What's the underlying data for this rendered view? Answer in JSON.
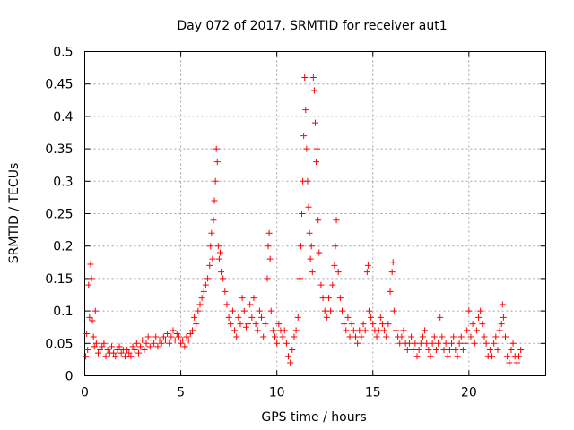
{
  "chart_data": {
    "type": "scatter",
    "title": "Day 072 of 2017, SRMTID for receiver aut1",
    "xlabel": "GPS time / hours",
    "ylabel": "SRMTID / TECUs",
    "xlim": [
      0,
      24
    ],
    "ylim": [
      0,
      0.5
    ],
    "x_ticks": [
      0,
      5,
      10,
      15,
      20
    ],
    "x_tick_labels": [
      "0",
      "5",
      "10",
      "15",
      "20"
    ],
    "y_ticks": [
      0,
      0.05,
      0.1,
      0.15,
      0.2,
      0.25,
      0.3,
      0.35,
      0.4,
      0.45,
      0.5
    ],
    "y_tick_labels": [
      "0",
      "0.05",
      "0.1",
      "0.15",
      "0.2",
      "0.25",
      "0.3",
      "0.35",
      "0.4",
      "0.45",
      "0.5"
    ],
    "grid": true,
    "marker": "plus",
    "color": "#ff0000",
    "series": [
      {
        "name": "SRMTID",
        "points": [
          [
            0.05,
            0.03
          ],
          [
            0.1,
            0.065
          ],
          [
            0.15,
            0.04
          ],
          [
            0.2,
            0.14
          ],
          [
            0.25,
            0.09
          ],
          [
            0.3,
            0.172
          ],
          [
            0.35,
            0.15
          ],
          [
            0.4,
            0.085
          ],
          [
            0.45,
            0.06
          ],
          [
            0.5,
            0.045
          ],
          [
            0.55,
            0.1
          ],
          [
            0.6,
            0.05
          ],
          [
            0.7,
            0.035
          ],
          [
            0.8,
            0.04
          ],
          [
            0.9,
            0.045
          ],
          [
            1.0,
            0.05
          ],
          [
            1.1,
            0.03
          ],
          [
            1.2,
            0.04
          ],
          [
            1.3,
            0.035
          ],
          [
            1.4,
            0.045
          ],
          [
            1.5,
            0.035
          ],
          [
            1.6,
            0.03
          ],
          [
            1.7,
            0.04
          ],
          [
            1.8,
            0.045
          ],
          [
            1.9,
            0.035
          ],
          [
            2.0,
            0.04
          ],
          [
            2.1,
            0.03
          ],
          [
            2.2,
            0.04
          ],
          [
            2.3,
            0.035
          ],
          [
            2.4,
            0.03
          ],
          [
            2.5,
            0.045
          ],
          [
            2.6,
            0.04
          ],
          [
            2.7,
            0.05
          ],
          [
            2.8,
            0.035
          ],
          [
            2.9,
            0.045
          ],
          [
            3.0,
            0.055
          ],
          [
            3.1,
            0.04
          ],
          [
            3.2,
            0.05
          ],
          [
            3.3,
            0.06
          ],
          [
            3.4,
            0.045
          ],
          [
            3.5,
            0.055
          ],
          [
            3.6,
            0.05
          ],
          [
            3.7,
            0.06
          ],
          [
            3.8,
            0.045
          ],
          [
            3.9,
            0.055
          ],
          [
            4.0,
            0.05
          ],
          [
            4.1,
            0.06
          ],
          [
            4.2,
            0.055
          ],
          [
            4.3,
            0.065
          ],
          [
            4.4,
            0.05
          ],
          [
            4.5,
            0.06
          ],
          [
            4.6,
            0.07
          ],
          [
            4.7,
            0.055
          ],
          [
            4.8,
            0.065
          ],
          [
            4.9,
            0.06
          ],
          [
            5.0,
            0.05
          ],
          [
            5.1,
            0.055
          ],
          [
            5.2,
            0.045
          ],
          [
            5.3,
            0.06
          ],
          [
            5.4,
            0.055
          ],
          [
            5.5,
            0.065
          ],
          [
            5.6,
            0.07
          ],
          [
            5.7,
            0.09
          ],
          [
            5.8,
            0.08
          ],
          [
            5.9,
            0.1
          ],
          [
            6.0,
            0.11
          ],
          [
            6.1,
            0.12
          ],
          [
            6.2,
            0.13
          ],
          [
            6.3,
            0.14
          ],
          [
            6.4,
            0.15
          ],
          [
            6.5,
            0.17
          ],
          [
            6.55,
            0.2
          ],
          [
            6.6,
            0.22
          ],
          [
            6.65,
            0.18
          ],
          [
            6.7,
            0.24
          ],
          [
            6.75,
            0.27
          ],
          [
            6.8,
            0.3
          ],
          [
            6.85,
            0.35
          ],
          [
            6.9,
            0.33
          ],
          [
            6.95,
            0.2
          ],
          [
            7.0,
            0.18
          ],
          [
            7.05,
            0.19
          ],
          [
            7.1,
            0.16
          ],
          [
            7.2,
            0.15
          ],
          [
            7.3,
            0.13
          ],
          [
            7.4,
            0.11
          ],
          [
            7.5,
            0.09
          ],
          [
            7.6,
            0.08
          ],
          [
            7.7,
            0.1
          ],
          [
            7.8,
            0.07
          ],
          [
            7.9,
            0.06
          ],
          [
            8.0,
            0.09
          ],
          [
            8.1,
            0.08
          ],
          [
            8.2,
            0.12
          ],
          [
            8.3,
            0.1
          ],
          [
            8.4,
            0.075
          ],
          [
            8.5,
            0.08
          ],
          [
            8.6,
            0.11
          ],
          [
            8.7,
            0.09
          ],
          [
            8.8,
            0.12
          ],
          [
            8.9,
            0.08
          ],
          [
            9.0,
            0.07
          ],
          [
            9.1,
            0.1
          ],
          [
            9.2,
            0.09
          ],
          [
            9.3,
            0.06
          ],
          [
            9.4,
            0.08
          ],
          [
            9.5,
            0.15
          ],
          [
            9.55,
            0.2
          ],
          [
            9.6,
            0.22
          ],
          [
            9.65,
            0.18
          ],
          [
            9.7,
            0.1
          ],
          [
            9.8,
            0.07
          ],
          [
            9.9,
            0.06
          ],
          [
            10.0,
            0.05
          ],
          [
            10.1,
            0.08
          ],
          [
            10.2,
            0.07
          ],
          [
            10.3,
            0.06
          ],
          [
            10.4,
            0.07
          ],
          [
            10.5,
            0.05
          ],
          [
            10.6,
            0.03
          ],
          [
            10.7,
            0.02
          ],
          [
            10.8,
            0.04
          ],
          [
            10.9,
            0.06
          ],
          [
            11.0,
            0.07
          ],
          [
            11.1,
            0.09
          ],
          [
            11.2,
            0.15
          ],
          [
            11.25,
            0.2
          ],
          [
            11.3,
            0.25
          ],
          [
            11.35,
            0.3
          ],
          [
            11.4,
            0.37
          ],
          [
            11.45,
            0.46
          ],
          [
            11.5,
            0.41
          ],
          [
            11.55,
            0.35
          ],
          [
            11.6,
            0.3
          ],
          [
            11.65,
            0.26
          ],
          [
            11.7,
            0.22
          ],
          [
            11.75,
            0.18
          ],
          [
            11.8,
            0.2
          ],
          [
            11.85,
            0.16
          ],
          [
            11.9,
            0.46
          ],
          [
            11.95,
            0.44
          ],
          [
            12.0,
            0.39
          ],
          [
            12.05,
            0.33
          ],
          [
            12.1,
            0.35
          ],
          [
            12.15,
            0.24
          ],
          [
            12.2,
            0.19
          ],
          [
            12.3,
            0.14
          ],
          [
            12.4,
            0.12
          ],
          [
            12.5,
            0.1
          ],
          [
            12.6,
            0.09
          ],
          [
            12.7,
            0.12
          ],
          [
            12.8,
            0.1
          ],
          [
            12.9,
            0.14
          ],
          [
            13.0,
            0.17
          ],
          [
            13.05,
            0.2
          ],
          [
            13.1,
            0.24
          ],
          [
            13.2,
            0.16
          ],
          [
            13.3,
            0.12
          ],
          [
            13.4,
            0.1
          ],
          [
            13.5,
            0.08
          ],
          [
            13.6,
            0.07
          ],
          [
            13.7,
            0.09
          ],
          [
            13.8,
            0.06
          ],
          [
            13.9,
            0.08
          ],
          [
            14.0,
            0.07
          ],
          [
            14.1,
            0.06
          ],
          [
            14.2,
            0.05
          ],
          [
            14.3,
            0.07
          ],
          [
            14.4,
            0.06
          ],
          [
            14.5,
            0.08
          ],
          [
            14.6,
            0.07
          ],
          [
            14.7,
            0.16
          ],
          [
            14.75,
            0.17
          ],
          [
            14.8,
            0.1
          ],
          [
            14.9,
            0.09
          ],
          [
            15.0,
            0.08
          ],
          [
            15.1,
            0.07
          ],
          [
            15.2,
            0.06
          ],
          [
            15.3,
            0.07
          ],
          [
            15.4,
            0.09
          ],
          [
            15.5,
            0.08
          ],
          [
            15.6,
            0.07
          ],
          [
            15.7,
            0.06
          ],
          [
            15.8,
            0.08
          ],
          [
            15.9,
            0.13
          ],
          [
            16.0,
            0.16
          ],
          [
            16.05,
            0.175
          ],
          [
            16.1,
            0.1
          ],
          [
            16.2,
            0.07
          ],
          [
            16.3,
            0.06
          ],
          [
            16.4,
            0.05
          ],
          [
            16.5,
            0.06
          ],
          [
            16.6,
            0.07
          ],
          [
            16.7,
            0.05
          ],
          [
            16.8,
            0.04
          ],
          [
            16.9,
            0.05
          ],
          [
            17.0,
            0.06
          ],
          [
            17.1,
            0.04
          ],
          [
            17.2,
            0.05
          ],
          [
            17.3,
            0.03
          ],
          [
            17.4,
            0.04
          ],
          [
            17.5,
            0.05
          ],
          [
            17.6,
            0.06
          ],
          [
            17.7,
            0.07
          ],
          [
            17.8,
            0.05
          ],
          [
            17.9,
            0.04
          ],
          [
            18.0,
            0.03
          ],
          [
            18.1,
            0.05
          ],
          [
            18.2,
            0.06
          ],
          [
            18.3,
            0.04
          ],
          [
            18.4,
            0.05
          ],
          [
            18.5,
            0.09
          ],
          [
            18.6,
            0.06
          ],
          [
            18.7,
            0.04
          ],
          [
            18.8,
            0.05
          ],
          [
            18.9,
            0.03
          ],
          [
            19.0,
            0.04
          ],
          [
            19.1,
            0.05
          ],
          [
            19.2,
            0.06
          ],
          [
            19.3,
            0.04
          ],
          [
            19.4,
            0.03
          ],
          [
            19.5,
            0.05
          ],
          [
            19.6,
            0.06
          ],
          [
            19.7,
            0.04
          ],
          [
            19.8,
            0.05
          ],
          [
            19.9,
            0.07
          ],
          [
            20.0,
            0.1
          ],
          [
            20.1,
            0.06
          ],
          [
            20.2,
            0.08
          ],
          [
            20.3,
            0.05
          ],
          [
            20.4,
            0.07
          ],
          [
            20.5,
            0.09
          ],
          [
            20.6,
            0.1
          ],
          [
            20.7,
            0.08
          ],
          [
            20.8,
            0.06
          ],
          [
            20.9,
            0.05
          ],
          [
            21.0,
            0.03
          ],
          [
            21.1,
            0.04
          ],
          [
            21.2,
            0.03
          ],
          [
            21.3,
            0.05
          ],
          [
            21.4,
            0.06
          ],
          [
            21.5,
            0.04
          ],
          [
            21.6,
            0.07
          ],
          [
            21.7,
            0.08
          ],
          [
            21.75,
            0.11
          ],
          [
            21.8,
            0.09
          ],
          [
            21.9,
            0.06
          ],
          [
            22.0,
            0.03
          ],
          [
            22.1,
            0.02
          ],
          [
            22.2,
            0.04
          ],
          [
            22.3,
            0.05
          ],
          [
            22.4,
            0.03
          ],
          [
            22.5,
            0.02
          ],
          [
            22.6,
            0.03
          ],
          [
            22.7,
            0.04
          ]
        ]
      }
    ]
  }
}
